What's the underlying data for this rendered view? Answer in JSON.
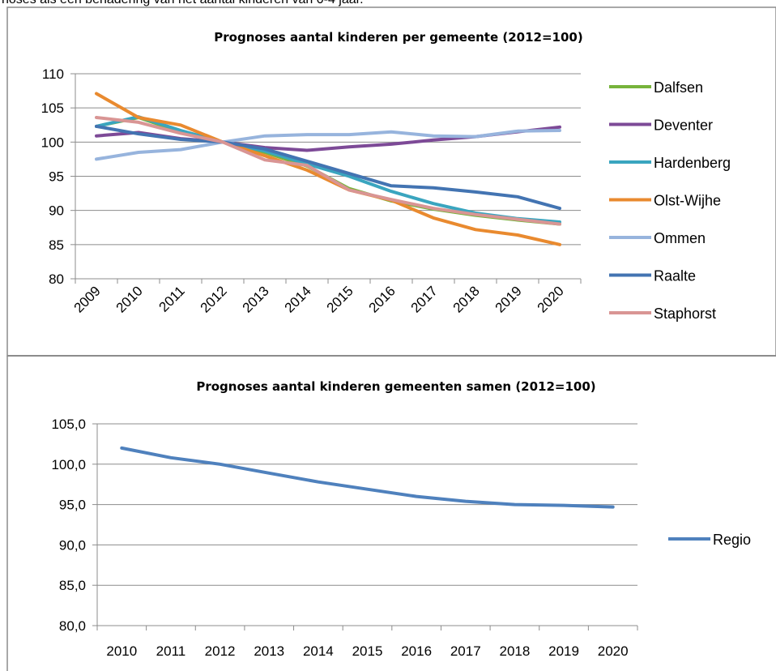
{
  "page": {
    "lead_text": "noses als een benadering van het aantal kinderen van 0-4 jaar."
  },
  "chart_data": [
    {
      "type": "line",
      "title": "Prognoses aantal kinderen per gemeente (2012=100)",
      "categories": [
        "2009",
        "2010",
        "2011",
        "2012",
        "2013",
        "2014",
        "2015",
        "2016",
        "2017",
        "2018",
        "2019",
        "2020"
      ],
      "ylim": [
        80,
        110
      ],
      "yticks": [
        "80",
        "85",
        "90",
        "95",
        "100",
        "105",
        "110"
      ],
      "grid": true,
      "legend_position": "right",
      "series": [
        {
          "name": "Dalfsen",
          "color": "#77b33b",
          "values": [
            102.3,
            103.6,
            101.5,
            100,
            98.5,
            96.5,
            93.2,
            91.4,
            90.2,
            89.3,
            88.6,
            88.0
          ]
        },
        {
          "name": "Deventer",
          "color": "#7d4a97",
          "values": [
            100.9,
            101.4,
            100.5,
            100,
            99.2,
            98.8,
            99.3,
            99.7,
            100.3,
            100.8,
            101.5,
            102.2
          ]
        },
        {
          "name": "Hardenberg",
          "color": "#3aa5bf",
          "values": [
            102.3,
            103.7,
            101.7,
            100,
            98.7,
            96.8,
            95.0,
            92.8,
            91.0,
            89.6,
            88.8,
            88.3
          ]
        },
        {
          "name": "Olst-Wijhe",
          "color": "#e98a2f",
          "values": [
            107.1,
            103.6,
            102.5,
            100,
            98.0,
            95.9,
            93.0,
            91.5,
            88.9,
            87.2,
            86.4,
            85.0
          ]
        },
        {
          "name": "Ommen",
          "color": "#97b4dd",
          "values": [
            97.5,
            98.5,
            98.9,
            100,
            100.9,
            101.1,
            101.1,
            101.5,
            100.9,
            100.8,
            101.6,
            101.7
          ]
        },
        {
          "name": "Raalte",
          "color": "#4374b2",
          "values": [
            102.3,
            101.2,
            100.4,
            100,
            99.0,
            97.2,
            95.4,
            93.6,
            93.3,
            92.7,
            92.0,
            90.3
          ]
        },
        {
          "name": "Staphorst",
          "color": "#d99594",
          "values": [
            103.6,
            102.9,
            101.3,
            100,
            97.4,
            96.6,
            93.0,
            91.6,
            90.3,
            89.4,
            88.7,
            88.0
          ]
        }
      ]
    },
    {
      "type": "line",
      "title": "Prognoses aantal kinderen gemeenten samen (2012=100)",
      "categories": [
        "2010",
        "2011",
        "2012",
        "2013",
        "2014",
        "2015",
        "2016",
        "2017",
        "2018",
        "2019",
        "2020"
      ],
      "ylim": [
        80,
        105
      ],
      "yticks": [
        "80,0",
        "85,0",
        "90,0",
        "95,0",
        "100,0",
        "105,0"
      ],
      "grid": true,
      "legend_position": "right",
      "series": [
        {
          "name": "Regio",
          "color": "#4f81bd",
          "values": [
            102.0,
            100.8,
            100.0,
            98.9,
            97.8,
            96.9,
            96.0,
            95.4,
            95.0,
            94.9,
            94.7
          ]
        }
      ]
    }
  ]
}
